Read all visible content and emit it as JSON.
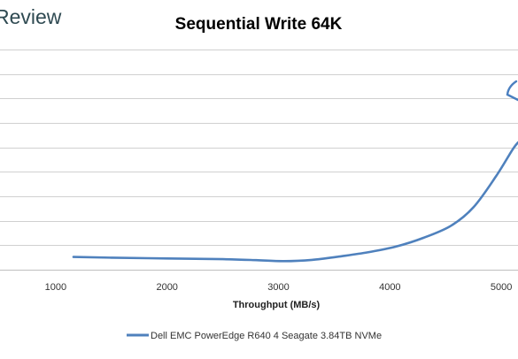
{
  "header": {
    "logo_text": "Review"
  },
  "chart_data": {
    "type": "line",
    "title": "Sequential Write 64K",
    "xlabel": "Throughput (MB/s)",
    "ylabel": "",
    "xlim": [
      500,
      5150
    ],
    "x_ticks": [
      1000,
      2000,
      3000,
      4000,
      5000
    ],
    "ylim": [
      0,
      9
    ],
    "y_grid_count": 9,
    "grid": true,
    "legend_position": "bottom",
    "colors": {
      "series": "#4f81bd",
      "grid": "#d0d0d0",
      "axis": "#bfbfbf",
      "logo": "#2f4a52",
      "annotation": "#4a7fc0"
    },
    "series": [
      {
        "name": "Dell EMC PowerEdge R640 4 Seagate 3.84TB NVMe",
        "x": [
          1160,
          1500,
          2000,
          2500,
          2800,
          3050,
          3300,
          3550,
          3800,
          4050,
          4300,
          4550,
          4750,
          4950,
          5100,
          5150
        ],
        "y": [
          0.52,
          0.49,
          0.46,
          0.43,
          0.39,
          0.35,
          0.4,
          0.54,
          0.71,
          0.94,
          1.3,
          1.8,
          2.55,
          3.8,
          4.9,
          5.2
        ]
      }
    ]
  }
}
